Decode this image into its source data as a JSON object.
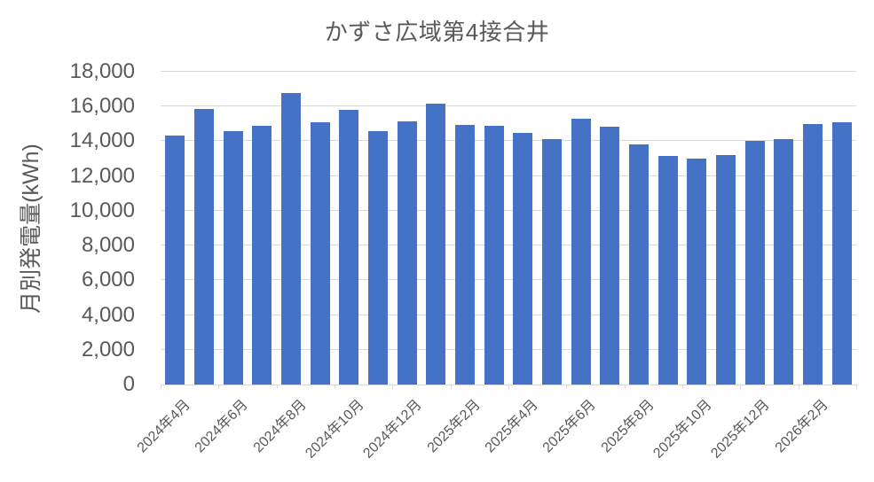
{
  "chart_data": {
    "type": "bar",
    "title": "かずさ広域第4接合井",
    "ylabel": "月別発電量(kWh)",
    "xlabel": "",
    "categories": [
      "2024年4月",
      "2024年5月",
      "2024年6月",
      "2024年7月",
      "2024年8月",
      "2024年9月",
      "2024年10月",
      "2024年11月",
      "2024年12月",
      "2025年1月",
      "2025年2月",
      "2025年3月",
      "2025年4月",
      "2025年5月",
      "2025年6月",
      "2025年7月",
      "2025年8月",
      "2025年9月",
      "2025年10月",
      "2025年11月",
      "2025年12月",
      "2026年1月",
      "2026年2月",
      "2026年3月"
    ],
    "values": [
      14350,
      15850,
      14600,
      14900,
      16800,
      15100,
      15800,
      14600,
      15150,
      16150,
      14950,
      14900,
      14500,
      14100,
      15300,
      14850,
      13800,
      13150,
      13000,
      13200,
      14000,
      14150,
      15000,
      15100
    ],
    "ylim": [
      0,
      18000
    ],
    "ytick_step": 2000,
    "ytick_labels": [
      "0",
      "2,000",
      "4,000",
      "6,000",
      "8,000",
      "10,000",
      "12,000",
      "14,000",
      "16,000",
      "18,000"
    ],
    "xlabel_interval": 2,
    "visible_x_labels": [
      "2024年4月",
      "2024年6月",
      "2024年8月",
      "2024年10月",
      "2024年12月",
      "2025年2月",
      "2025年4月",
      "2025年6月",
      "2025年8月",
      "2025年10月",
      "2025年12月",
      "2026年2月"
    ],
    "grid": true,
    "legend_position": "none",
    "bar_color": "#4472C4",
    "gridline_color": "#D9D9D9",
    "axis_color": "#D9D9D9",
    "text_color": "#595959"
  }
}
